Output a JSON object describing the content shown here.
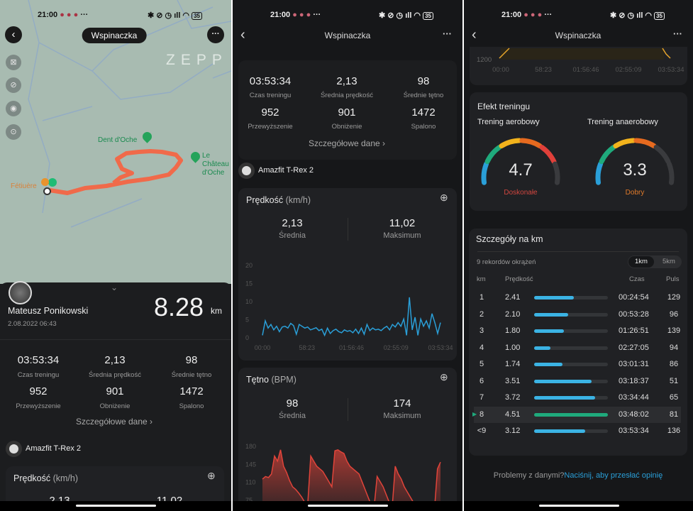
{
  "status_bar": {
    "time": "21:00",
    "battery": "35",
    "icons": [
      "messenger-icon",
      "gmail-icon",
      "app-icon",
      "more-dots",
      "bluetooth-icon",
      "mute-icon",
      "alarm-icon",
      "signal-icon",
      "wifi-icon",
      "battery-icon"
    ],
    "more": "···"
  },
  "header": {
    "title": "Wspinaczka",
    "more": "···"
  },
  "map": {
    "watermark": "ZEPP",
    "places": [
      "Dent d'Oche",
      "Le Château",
      "d'Oche",
      "Fétiuère"
    ],
    "route_color": "#f06a4a",
    "side_icons": [
      "satellite-off-icon",
      "layer-off-icon",
      "eye-icon",
      "locate-icon"
    ]
  },
  "summary": {
    "user": "Mateusz Ponikowski",
    "date": "2.08.2022 06:43",
    "distance": "8.28",
    "distance_unit": "km"
  },
  "stats": [
    {
      "value": "03:53:34",
      "label": "Czas treningu"
    },
    {
      "value": "2,13",
      "label": "Średnia prędkość"
    },
    {
      "value": "98",
      "label": "Średnie tętno"
    },
    {
      "value": "952",
      "label": "Przewyższenie"
    },
    {
      "value": "901",
      "label": "Obniżenie"
    },
    {
      "value": "1472",
      "label": "Spalono"
    }
  ],
  "details_link": "Szczegółowe dane",
  "device": "Amazfit T-Rex 2",
  "speed": {
    "title": "Prędkość",
    "unit": "(km/h)",
    "avg": "2,13",
    "avg_label": "Średnia",
    "max": "11,02",
    "max_label": "Maksimum",
    "y_ticks": [
      "20",
      "15",
      "10",
      "5",
      "0"
    ],
    "x_ticks": [
      "00:00",
      "58:23",
      "01:56:46",
      "02:55:09",
      "03:53:34"
    ],
    "color": "#2a9fd8",
    "series": [
      0.5,
      4.5,
      2.5,
      3.5,
      2,
      3,
      1.5,
      2.8,
      3,
      2.5,
      3.8,
      3.2,
      0.8,
      3.5,
      3,
      2.5,
      2.8,
      2,
      2.3,
      2.6,
      1.8,
      2.2,
      0.5,
      2.5,
      1,
      1.8,
      2.2,
      1.5,
      1.2,
      2,
      1.6,
      1.8,
      1.2,
      2.2,
      1,
      2.5,
      0.8,
      3.5,
      1.8,
      2.5,
      2,
      2.2,
      1.8,
      2.5,
      3,
      2,
      3.5,
      2.8,
      4,
      3,
      5,
      0.5,
      11,
      2,
      5.5,
      0.5,
      5,
      3,
      4.5,
      2.5,
      6.5,
      4,
      1,
      4
    ]
  },
  "heart": {
    "title": "Tętno",
    "unit": "(BPM)",
    "avg": "98",
    "avg_label": "Średnia",
    "max": "174",
    "max_label": "Maksimum",
    "y_ticks": [
      "180",
      "145",
      "110",
      "75"
    ],
    "color": "#e0443a",
    "series": [
      115,
      120,
      118,
      125,
      160,
      150,
      172,
      140,
      128,
      112,
      100,
      95,
      88,
      80,
      70,
      65,
      160,
      150,
      140,
      135,
      130,
      120,
      110,
      100,
      170,
      172,
      168,
      165,
      150,
      140,
      135,
      130,
      125,
      110,
      95,
      80,
      65,
      60,
      120,
      110,
      100,
      85,
      70,
      60,
      140,
      125,
      115,
      100,
      90,
      80,
      70,
      60,
      55,
      60,
      65,
      70,
      60,
      55,
      135,
      148
    ]
  },
  "elevation": {
    "y_tick": "1200",
    "x_ticks": [
      "00:00",
      "58:23",
      "01:56:46",
      "02:55:09",
      "03:53:34"
    ],
    "color": "#e7a52a"
  },
  "training_effect": {
    "title": "Efekt treningu",
    "gauges": [
      {
        "label": "Trening aerobowy",
        "value": "4.7",
        "fill": 0.94,
        "rating": "Doskonałe",
        "rating_color": "#d0463f"
      },
      {
        "label": "Trening anaerobowy",
        "value": "3.3",
        "fill": 0.66,
        "rating": "Dobry",
        "rating_color": "#e07a2a"
      }
    ],
    "segment_colors": [
      "#2a9fd8",
      "#1faa7c",
      "#f2b31c",
      "#e66a1f",
      "#e0403a",
      "#3a3b3e"
    ]
  },
  "laps": {
    "title": "Szczegóły na km",
    "subtitle": "9 rekordów okrążeń",
    "toggle": [
      "1km",
      "5km"
    ],
    "headers": [
      "km",
      "Prędkość",
      "Czas",
      "Puls"
    ],
    "max_speed": 4.51,
    "rows": [
      {
        "km": "1",
        "speed": "2.41",
        "time": "00:24:54",
        "pulse": "129"
      },
      {
        "km": "2",
        "speed": "2.10",
        "time": "00:53:28",
        "pulse": "96"
      },
      {
        "km": "3",
        "speed": "1.80",
        "time": "01:26:51",
        "pulse": "139"
      },
      {
        "km": "4",
        "speed": "1.00",
        "time": "02:27:05",
        "pulse": "94"
      },
      {
        "km": "5",
        "speed": "1.74",
        "time": "03:01:31",
        "pulse": "86"
      },
      {
        "km": "6",
        "speed": "3.51",
        "time": "03:18:37",
        "pulse": "51"
      },
      {
        "km": "7",
        "speed": "3.72",
        "time": "03:34:44",
        "pulse": "65"
      },
      {
        "km": "8",
        "speed": "4.51",
        "time": "03:48:02",
        "pulse": "81",
        "best": true
      },
      {
        "km": "<9",
        "speed": "3.12",
        "time": "03:53:34",
        "pulse": "136"
      }
    ]
  },
  "feedback": {
    "text": "Problemy z danymi?",
    "link": "Naciśnij, aby przesłać opinię"
  }
}
